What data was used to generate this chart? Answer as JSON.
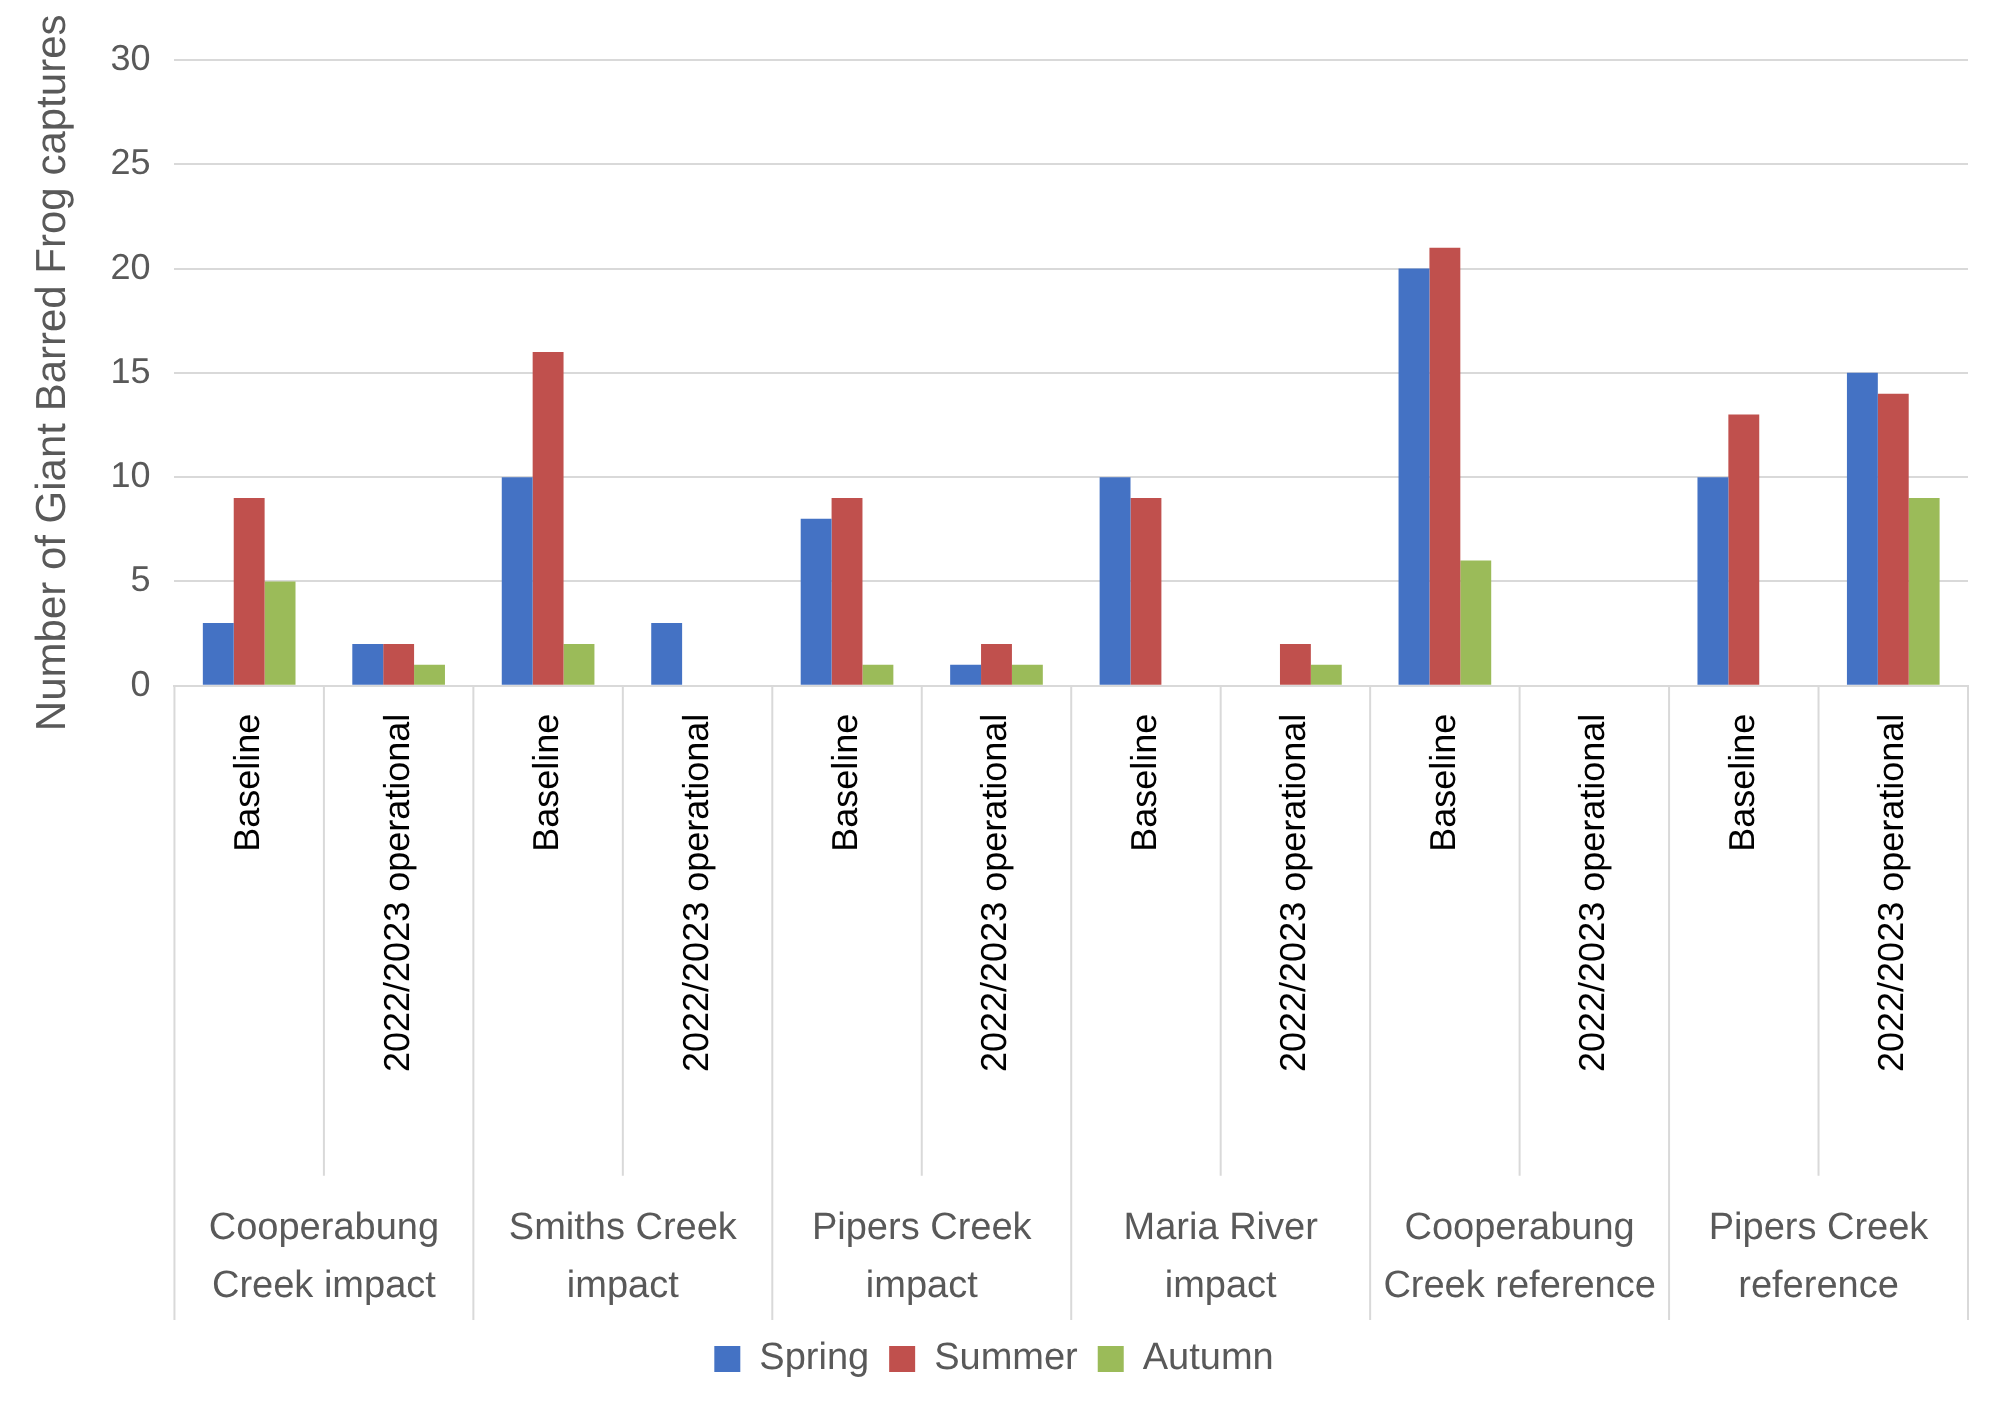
{
  "chart_data": {
    "type": "bar",
    "ylabel": "Number of Giant Barred Frog captures",
    "categories": [
      "Baseline",
      "2022/2023 operational",
      "Baseline",
      "2022/2023 operational",
      "Baseline",
      "2022/2023 operational",
      "Baseline",
      "2022/2023 operational",
      "Baseline",
      "2022/2023 operational",
      "Baseline",
      "2022/2023 operational"
    ],
    "annotations": [
      "Cooperabung Creek impact",
      "Smiths Creek impact",
      "Pipers Creek impact",
      "Maria River impact",
      "Cooperabung Creek reference",
      "Pipers Creek reference"
    ],
    "series": [
      {
        "name": "Spring",
        "color": "#4472c4",
        "values": [
          3,
          2,
          10,
          3,
          8,
          1,
          10,
          0,
          20,
          0,
          10,
          15
        ]
      },
      {
        "name": "Summer",
        "color": "#c0504d",
        "values": [
          9,
          2,
          16,
          0,
          9,
          2,
          9,
          2,
          21,
          0,
          13,
          14
        ]
      },
      {
        "name": "Autumn",
        "color": "#9bbb59",
        "values": [
          5,
          1,
          2,
          0,
          1,
          1,
          0,
          1,
          6,
          0,
          0,
          9
        ]
      }
    ],
    "ylim": [
      0,
      30
    ],
    "yticks": [
      0,
      5,
      10,
      15,
      20,
      25,
      30
    ],
    "grid": "y",
    "legend": "bottom"
  }
}
